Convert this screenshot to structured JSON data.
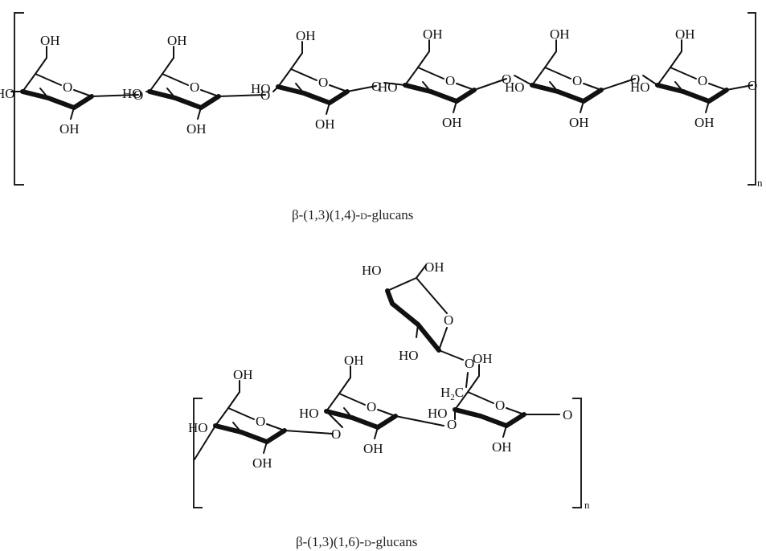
{
  "diagram1": {
    "caption_prefix": "β-(1,3)(1,4)-",
    "caption_d": "D",
    "caption_suffix": "-glucans",
    "repeat_subscript": "n",
    "labels": {
      "hydroxyl": "OH",
      "hydroxyl_left": "HO",
      "ring_oxygen": "O",
      "bridge_oxygen": "O"
    }
  },
  "diagram2": {
    "caption_prefix": "β-(1,3)(1,6)-",
    "caption_d": "D",
    "caption_suffix": "-glucans",
    "repeat_subscript": "n",
    "labels": {
      "hydroxyl": "OH",
      "hydroxyl_left": "HO",
      "ring_oxygen": "O",
      "bridge_oxygen": "O",
      "methylene": "H",
      "methylene_sub": "2",
      "methylene_c": "C"
    }
  }
}
